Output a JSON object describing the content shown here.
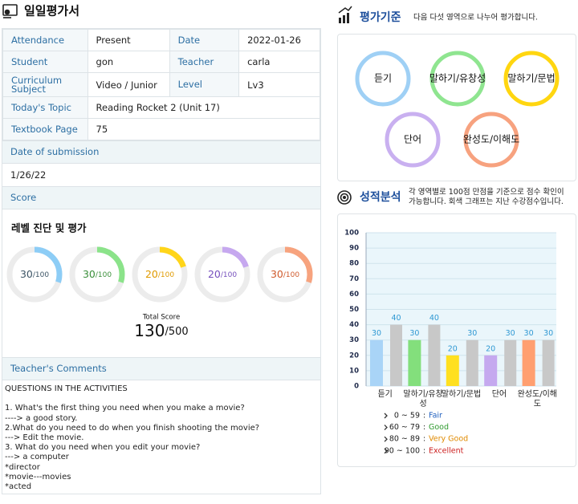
{
  "header": {
    "title": "일일평가서"
  },
  "info_table": {
    "rows": [
      [
        "Attendance",
        "Present",
        "Date",
        "2022-01-26"
      ],
      [
        "Student",
        "gon",
        "Teacher",
        "carla"
      ],
      [
        "Curriculum Subject",
        "Video / Junior",
        "Level",
        "Lv3"
      ],
      [
        "Today's Topic",
        "Reading Rocket 2 (Unit 17)"
      ],
      [
        "Textbook Page",
        "75"
      ]
    ]
  },
  "submission": {
    "heading": "Date of submission",
    "date": "1/26/22"
  },
  "score": {
    "heading": "Score",
    "subtitle": "레벨 진단 및 평가",
    "items": [
      {
        "value": 30,
        "max": {
          "value": 100,
          "label": "/100"
        },
        "color": "#8dcdf6",
        "text_color": "#3d5566"
      },
      {
        "value": 30,
        "max": {
          "value": 100,
          "label": "/100"
        },
        "color": "#8be38a",
        "text_color": "#3a8f3a"
      },
      {
        "value": 20,
        "max": {
          "value": 100,
          "label": "/100"
        },
        "color": "#ffd51a",
        "text_color": "#e09a00"
      },
      {
        "value": 20,
        "max": {
          "value": 100,
          "label": "/100"
        },
        "color": "#c6a8ef",
        "text_color": "#7650bd"
      },
      {
        "value": 30,
        "max": {
          "value": 100,
          "label": "/100"
        },
        "color": "#f7a37e",
        "text_color": "#cf5a2c"
      }
    ],
    "total": {
      "label": "Total Score",
      "value": 130,
      "max": {
        "value": 500,
        "label": "/500"
      }
    }
  },
  "comments": {
    "heading": "Teacher's Comments",
    "lines": [
      "QUESTIONS IN THE ACTIVITIES",
      "1. What's the first thing you need when you make a movie?",
      "----> a good story.",
      "2.What do you need to do when you finish shooting the movie?",
      "---> Edit the movie.",
      "3. What do you need when you edit your movie?",
      "---> a computer",
      "*director",
      "*movie---movies",
      "*acted"
    ]
  },
  "criteria": {
    "title": "평가기준",
    "description": "다음 다섯 영역으로 나누어 평가합니다.",
    "areas": [
      {
        "label": "듣기",
        "color": "#9fd0f5"
      },
      {
        "label": "말하기/유창성",
        "color": "#8fe590"
      },
      {
        "label": "말하기/문법",
        "color": "#ffd610"
      },
      {
        "label": "단어",
        "color": "#c9b0f0"
      },
      {
        "label": "완성도/이해도",
        "color": "#f7a27f"
      }
    ]
  },
  "analysis": {
    "title": "성적분석",
    "description": "각 영역별로 100점 만점을 기준으로 점수 확인이 가능합니다. 회색 그래프는 지난 수강점수입니다.",
    "grades": [
      {
        "range": "0 ~ 59",
        "separator": ":",
        "label": "Fair",
        "color": "#1f5fbf"
      },
      {
        "range": "60 ~ 79",
        "separator": ":",
        "label": "Good",
        "color": "#2e9a2e"
      },
      {
        "range": "80 ~ 89",
        "separator": ":",
        "label": "Very Good",
        "color": "#e08a00"
      },
      {
        "range": "90 ~ 100",
        "separator": ":",
        "label": "Excellent",
        "color": "#cc1f1f"
      }
    ]
  },
  "chart_data": {
    "type": "bar",
    "categories": [
      "듣기",
      "말하기/유창성",
      "말하기/문법",
      "단어",
      "완성도/이해도"
    ],
    "series": [
      {
        "values": [
          30,
          30,
          20,
          20,
          30
        ],
        "colors": [
          "#a9d4f7",
          "#83df7c",
          "#ffe020",
          "#c5a9ef",
          "#ff9f70"
        ]
      },
      {
        "values": [
          40,
          40,
          30,
          30,
          30
        ],
        "color": "#c8c8c8"
      }
    ],
    "ylim": [
      0,
      100
    ],
    "yticks": [
      0,
      10,
      20,
      30,
      40,
      50,
      60,
      70,
      80,
      90,
      100
    ],
    "grid": true
  }
}
